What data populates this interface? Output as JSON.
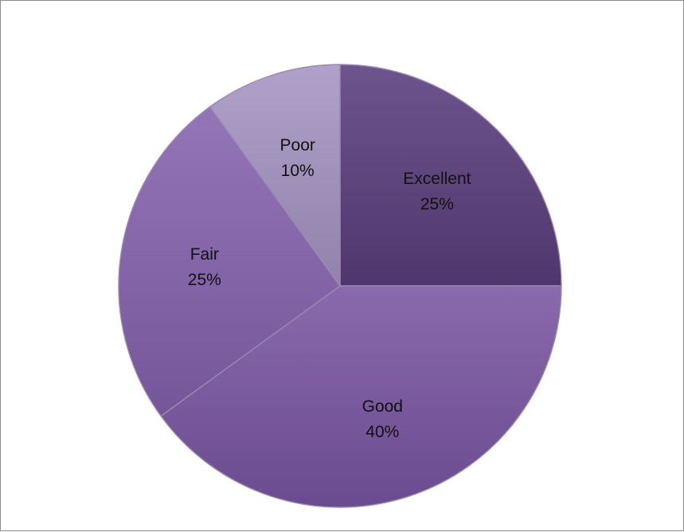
{
  "chart_data": {
    "type": "pie",
    "title": "",
    "slices": [
      {
        "label": "Excellent",
        "value": 25,
        "value_label": "25%",
        "color": "#5a3d7c"
      },
      {
        "label": "Good",
        "value": 40,
        "value_label": "40%",
        "color": "#7a55a2"
      },
      {
        "label": "Fair",
        "value": 25,
        "value_label": "25%",
        "color": "#8462ae"
      },
      {
        "label": "Poor",
        "value": 10,
        "value_label": "10%",
        "color": "#a594c3"
      }
    ],
    "start_angle_deg": 0,
    "direction": "clockwise",
    "legend": "none"
  }
}
